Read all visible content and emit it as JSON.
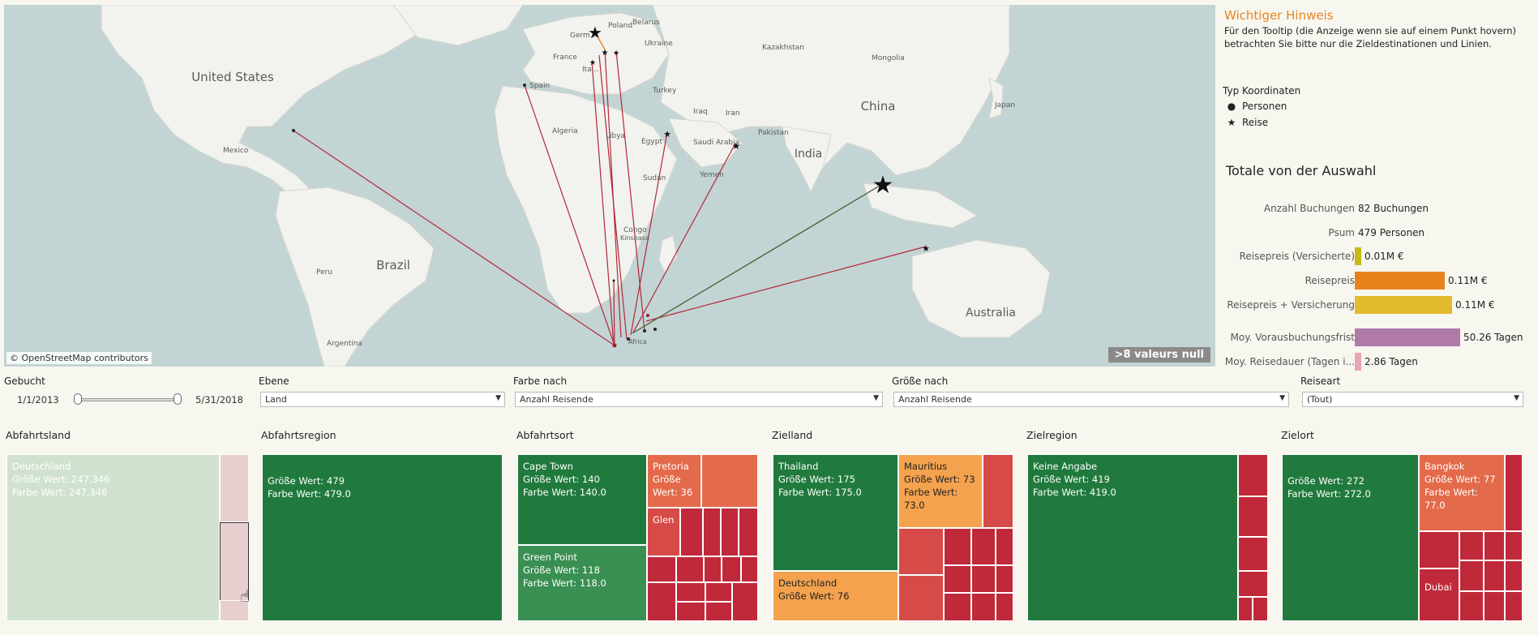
{
  "map": {
    "attribution": "© OpenStreetMap contributors",
    "null_badge": ">8 valeurs null",
    "labels": {
      "united_states": "United States",
      "mexico": "Mexico",
      "brazil": "Brazil",
      "peru": "Peru",
      "argentina": "Argentina",
      "spain": "Spain",
      "france": "France",
      "germany": "Germ...",
      "italy": "Ita...",
      "poland": "Poland",
      "belarus": "Belarus",
      "ukraine": "Ukraine",
      "turkey": "Turkey",
      "algeria": "Algeria",
      "libya": "Libya",
      "egypt": "Egypt",
      "sudan": "Sudan",
      "congo": "Congo",
      "kinshasa": "Kinshasa",
      "saudi": "Saudi Arabia",
      "yemen": "Yemen",
      "iraq": "Iraq",
      "iran": "Iran",
      "pakistan": "Pakistan",
      "india": "India",
      "china": "China",
      "kazakhstan": "Kazakhstan",
      "mongolia": "Mongolia",
      "japan": "Japan",
      "australia": "Australia",
      "south_africa": "Africa"
    }
  },
  "panel": {
    "title": "Wichtiger Hinweis",
    "hint": "Für den Tooltip (die Anzeige wenn sie auf einem Punkt hovern) betrachten Sie bitte nur die Zieldestinationen und Linien.",
    "legend_title": "Typ Koordinaten",
    "legend": [
      {
        "symbol": "●",
        "label": "Personen"
      },
      {
        "symbol": "★",
        "label": "Reise"
      }
    ],
    "totals_title": "Totale von der Auswahl",
    "totals": [
      {
        "label": "Anzahl Buchungen",
        "value": "82 Buchungen",
        "bar": 0,
        "color": ""
      },
      {
        "label": "Psum",
        "value": "479 Personen",
        "bar": 0,
        "color": ""
      },
      {
        "label": "Reisepreis (Versicherte)",
        "value": "0.01M €",
        "bar": 0.05,
        "color": "#c8b81a"
      },
      {
        "label": "Reisepreis",
        "value": "0.11M €",
        "bar": 0.85,
        "color": "#e8821c"
      },
      {
        "label": "Reisepreis + Versicherung",
        "value": "0.11M €",
        "bar": 0.92,
        "color": "#e2bb2c"
      },
      {
        "label": "Moy. Vorausbuchungsfrist",
        "value": "50.26 Tagen",
        "bar": 1.0,
        "color": "#b07aa8"
      },
      {
        "label": "Moy. Reisedauer (Tagen i...",
        "value": "2.86 Tagen",
        "bar": 0.05,
        "color": "#e8a5b5"
      }
    ]
  },
  "filters": {
    "gebucht": {
      "label": "Gebucht",
      "from": "1/1/2013",
      "to": "5/31/2018"
    },
    "ebene": {
      "label": "Ebene",
      "value": "Land"
    },
    "farbe": {
      "label": "Farbe nach",
      "value": "Anzahl Reisende"
    },
    "groesse": {
      "label": "Größe nach",
      "value": "Anzahl Reisende"
    },
    "reiseart": {
      "label": "Reiseart",
      "value": "(Tout)"
    }
  },
  "treemaps": {
    "abfahrtsland": {
      "title": "Abfahrtsland",
      "main": "Deutschland\nGröße Wert: 247,346\nFarbe Wert: 247,346"
    },
    "abfahrtsregion": {
      "title": "Abfahrtsregion",
      "main": "Größe Wert: 479\nFarbe Wert: 479.0"
    },
    "abfahrtsort": {
      "title": "Abfahrtsort",
      "capetown": "Cape Town\nGröße Wert: 140\nFarbe Wert: 140.0",
      "greenpoint": "Green Point\nGröße Wert: 118\nFarbe Wert: 118.0",
      "pretoria": "Pretoria\nGröße\nWert: 36",
      "glen": "Glen"
    },
    "zielland": {
      "title": "Zielland",
      "thailand": "Thailand\nGröße Wert: 175\nFarbe Wert: 175.0",
      "mauritius": "Mauritius\nGröße Wert: 73\nFarbe Wert:\n73.0",
      "deutschland": "Deutschland\nGröße Wert: 76"
    },
    "zielregion": {
      "title": "Zielregion",
      "main": "Keine Angabe\nGröße Wert: 419\nFarbe Wert: 419.0"
    },
    "zielort": {
      "title": "Zielort",
      "main": "Größe Wert: 272\nFarbe Wert: 272.0",
      "bangkok": "Bangkok\nGröße Wert: 77\nFarbe Wert:\n77.0",
      "dubai": "Dubai"
    }
  }
}
